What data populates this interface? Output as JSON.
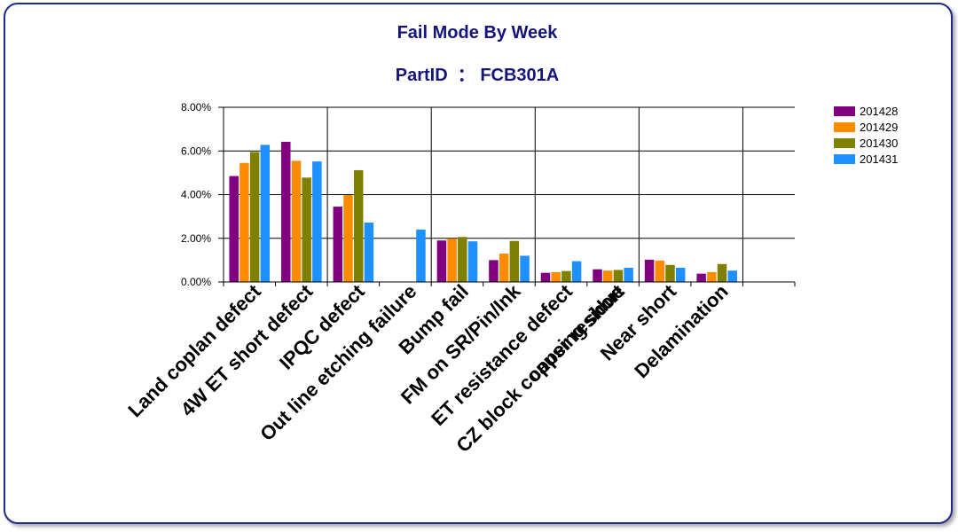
{
  "chart_data": {
    "type": "bar",
    "title": "Fail Mode By Week",
    "subtitle": "PartID  ： FCB301A",
    "categories": [
      "Land coplan defect",
      "4W ET short defect",
      "IPQC defect",
      "Out line etching failure",
      "Bump fail",
      "FM on SR/Pin/Ink",
      "ET resistance defect",
      "CZ block copper residue",
      "causing short",
      "Near short",
      "Delamination"
    ],
    "category_slots": [
      0,
      1,
      2,
      3,
      4,
      5,
      6,
      7,
      7,
      8,
      9
    ],
    "series": [
      {
        "name": "201428",
        "color": "#800080",
        "values": [
          4.85,
          6.42,
          3.45,
          0.0,
          1.9,
          1.0,
          0.42,
          0.58,
          null,
          1.02,
          0.38
        ]
      },
      {
        "name": "201429",
        "color": "#ff8c00",
        "values": [
          5.45,
          5.55,
          3.98,
          0.0,
          1.98,
          1.3,
          0.45,
          0.52,
          null,
          0.98,
          0.45
        ]
      },
      {
        "name": "201430",
        "color": "#808000",
        "values": [
          5.95,
          4.78,
          5.12,
          0.0,
          2.06,
          1.88,
          0.5,
          0.55,
          null,
          0.78,
          0.82
        ]
      },
      {
        "name": "201431",
        "color": "#1e90ff",
        "values": [
          6.28,
          5.52,
          2.72,
          2.4,
          1.86,
          1.2,
          0.95,
          0.65,
          null,
          0.65,
          0.52
        ]
      }
    ],
    "y_ticks": [
      "0.00%",
      "2.00%",
      "4.00%",
      "6.00%",
      "8.00%"
    ],
    "ylim": [
      0,
      8
    ],
    "y_unit": "%",
    "grid": true,
    "legend_position": "right"
  }
}
